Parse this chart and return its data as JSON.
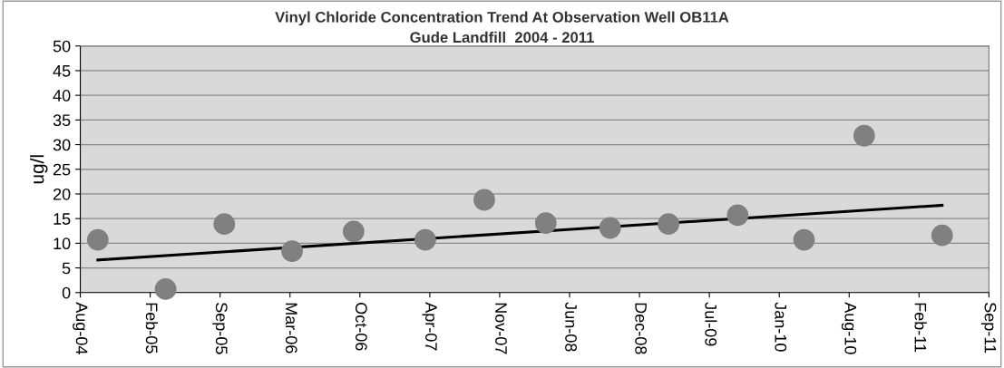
{
  "chart_data": {
    "type": "scatter",
    "title": "Vinyl Chloride Concentration Trend At Observation Well OB11A",
    "subtitle": "Gude Landfill  2004 - 2011",
    "ylabel": "ug/l",
    "series": [
      {
        "color": "#808080",
        "marker": "circle",
        "x": [
          "2004-09-20",
          "2005-04-02",
          "2005-09-17",
          "2006-03-30",
          "2006-09-22",
          "2007-04-15",
          "2007-10-01",
          "2008-03-25",
          "2008-09-25",
          "2009-03-11",
          "2009-09-25",
          "2010-04-03",
          "2010-09-22",
          "2011-05-03"
        ],
        "values": [
          10.7,
          0.7,
          13.9,
          8.4,
          12.4,
          10.7,
          18.8,
          14.1,
          13.1,
          13.9,
          15.7,
          10.7,
          31.8,
          11.6
        ]
      },
      {
        "type": "line",
        "color": "#000000",
        "marker": "none",
        "line_style": "solid",
        "x": [
          "2004-09-20",
          "2011-05-03"
        ],
        "values": [
          6.6,
          17.7
        ]
      }
    ],
    "xlim": [
      "2004-08-01",
      "2011-09-14"
    ],
    "xticks": [
      {
        "value": "2004-08-01",
        "label": "Aug-04"
      },
      {
        "value": "2005-02-17",
        "label": "Feb-05"
      },
      {
        "value": "2005-09-05",
        "label": "Sep-05"
      },
      {
        "value": "2006-03-24",
        "label": "Mar-06"
      },
      {
        "value": "2006-10-10",
        "label": "Oct-06"
      },
      {
        "value": "2007-04-28",
        "label": "Apr-07"
      },
      {
        "value": "2007-11-14",
        "label": "Nov-07"
      },
      {
        "value": "2008-06-01",
        "label": "Jun-08"
      },
      {
        "value": "2008-12-18",
        "label": "Dec-08"
      },
      {
        "value": "2009-07-06",
        "label": "Jul-09"
      },
      {
        "value": "2010-01-22",
        "label": "Jan-10"
      },
      {
        "value": "2010-08-10",
        "label": "Aug-10"
      },
      {
        "value": "2011-02-26",
        "label": "Feb-11"
      },
      {
        "value": "2011-09-14",
        "label": "Sep-11"
      }
    ],
    "ylim": [
      0,
      50
    ],
    "yticks": [
      0,
      5,
      10,
      15,
      20,
      25,
      30,
      35,
      40,
      45,
      50
    ],
    "grid": "y",
    "legend": false
  }
}
